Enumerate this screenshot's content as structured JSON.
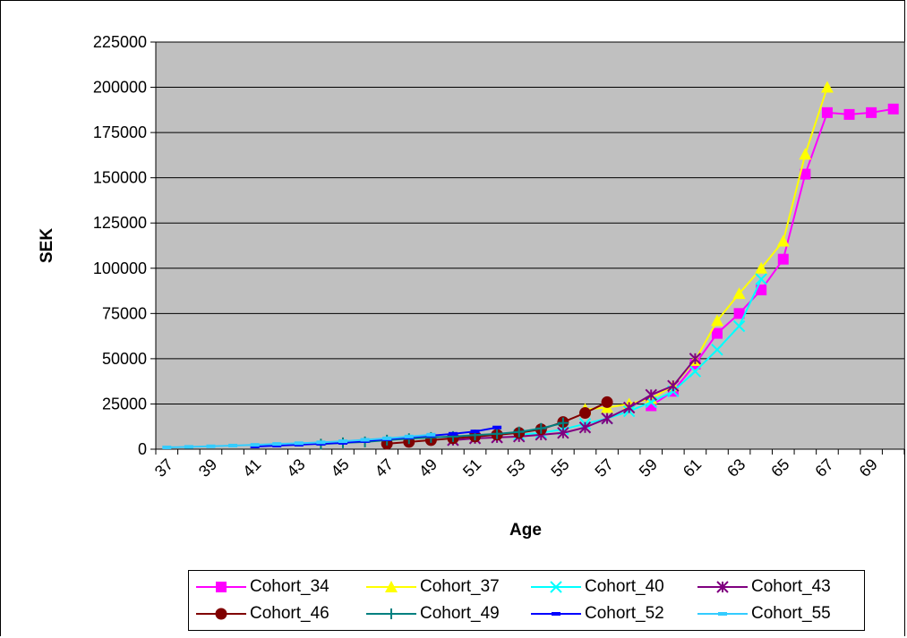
{
  "chart_data": {
    "type": "line",
    "title": "",
    "xlabel": "Age",
    "ylabel": "SEK",
    "x": [
      37,
      38,
      39,
      40,
      41,
      42,
      43,
      44,
      45,
      46,
      47,
      48,
      49,
      50,
      51,
      52,
      53,
      54,
      55,
      56,
      57,
      58,
      59,
      60,
      61,
      62,
      63,
      64,
      65,
      66,
      67,
      68,
      69,
      70
    ],
    "xticks": [
      "37",
      "39",
      "41",
      "43",
      "45",
      "47",
      "49",
      "51",
      "53",
      "55",
      "57",
      "59",
      "61",
      "63",
      "65",
      "67",
      "69"
    ],
    "ylim": [
      0,
      225000
    ],
    "yticks": [
      "0",
      "25000",
      "50000",
      "75000",
      "100000",
      "125000",
      "150000",
      "175000",
      "200000",
      "225000"
    ],
    "grid": true,
    "legend_position": "bottom",
    "plot_background": "#c0c0c0",
    "series": [
      {
        "name": "Cohort_34",
        "color": "#ff00ff",
        "marker": "square",
        "values": [
          null,
          null,
          null,
          null,
          null,
          null,
          null,
          null,
          null,
          null,
          null,
          null,
          null,
          null,
          null,
          null,
          null,
          null,
          null,
          null,
          null,
          null,
          24000,
          32000,
          47000,
          64000,
          75000,
          88000,
          105000,
          152000,
          186000,
          185000,
          186000,
          188000
        ]
      },
      {
        "name": "Cohort_37",
        "color": "#ffff00",
        "marker": "triangle",
        "values": [
          null,
          null,
          null,
          null,
          null,
          null,
          null,
          null,
          null,
          null,
          null,
          null,
          null,
          null,
          null,
          null,
          null,
          null,
          null,
          22000,
          23000,
          25000,
          28000,
          35000,
          49000,
          71000,
          86000,
          100000,
          115000,
          163000,
          200000,
          null,
          null,
          null
        ]
      },
      {
        "name": "Cohort_40",
        "color": "#00ffff",
        "marker": "x",
        "values": [
          null,
          null,
          null,
          null,
          null,
          null,
          null,
          null,
          null,
          null,
          null,
          null,
          null,
          null,
          null,
          null,
          8000,
          9000,
          11000,
          14000,
          17000,
          21000,
          26000,
          32000,
          43000,
          55000,
          68000,
          94000,
          null,
          null,
          null,
          null,
          null,
          null
        ]
      },
      {
        "name": "Cohort_43",
        "color": "#800080",
        "marker": "asterisk",
        "values": [
          null,
          null,
          null,
          null,
          null,
          null,
          null,
          null,
          null,
          null,
          null,
          null,
          null,
          5000,
          6000,
          6500,
          7000,
          8000,
          9000,
          12000,
          17000,
          23000,
          30000,
          35000,
          50000,
          null,
          null,
          null,
          null,
          null,
          null,
          null,
          null,
          null
        ]
      },
      {
        "name": "Cohort_46",
        "color": "#800000",
        "marker": "circle",
        "values": [
          null,
          null,
          null,
          null,
          null,
          null,
          null,
          null,
          null,
          null,
          3000,
          4000,
          5000,
          6000,
          7000,
          8000,
          9000,
          11000,
          15000,
          20000,
          26000,
          null,
          null,
          null,
          null,
          null,
          null,
          null,
          null,
          null,
          null,
          null,
          null,
          null
        ]
      },
      {
        "name": "Cohort_49",
        "color": "#008080",
        "marker": "plus",
        "values": [
          null,
          null,
          null,
          null,
          null,
          null,
          null,
          2800,
          3500,
          4000,
          5000,
          5800,
          6500,
          7000,
          7800,
          8500,
          9500,
          11500,
          14500,
          null,
          null,
          null,
          null,
          null,
          null,
          null,
          null,
          null,
          null,
          null,
          null,
          null,
          null,
          null
        ]
      },
      {
        "name": "Cohort_52",
        "color": "#0000ff",
        "marker": "dash",
        "values": [
          null,
          null,
          null,
          null,
          1500,
          2000,
          2500,
          3000,
          3500,
          4500,
          5500,
          6500,
          7500,
          8500,
          9800,
          12000,
          null,
          null,
          null,
          null,
          null,
          null,
          null,
          null,
          null,
          null,
          null,
          null,
          null,
          null,
          null,
          null,
          null,
          null
        ]
      },
      {
        "name": "Cohort_55",
        "color": "#33ccff",
        "marker": "dash",
        "values": [
          1000,
          1300,
          1600,
          2000,
          2400,
          2900,
          3300,
          3800,
          4400,
          5200,
          6000,
          7000,
          8000,
          null,
          null,
          null,
          null,
          null,
          null,
          null,
          null,
          null,
          null,
          null,
          null,
          null,
          null,
          null,
          null,
          null,
          null,
          null,
          null,
          null
        ]
      }
    ]
  }
}
